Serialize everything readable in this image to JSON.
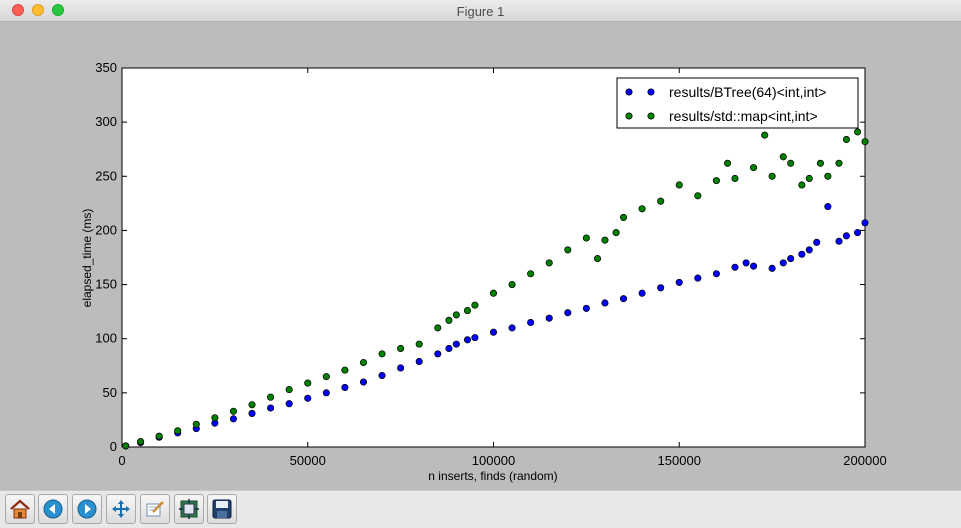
{
  "window": {
    "title": "Figure 1"
  },
  "toolbar": {
    "buttons": [
      {
        "name": "home-button",
        "icon": "home-icon"
      },
      {
        "name": "back-button",
        "icon": "back-arrow-icon"
      },
      {
        "name": "forward-button",
        "icon": "forward-arrow-icon"
      },
      {
        "name": "pan-button",
        "icon": "pan-icon"
      },
      {
        "name": "zoom-button",
        "icon": "zoom-rect-icon"
      },
      {
        "name": "subplots-button",
        "icon": "subplots-icon"
      },
      {
        "name": "save-button",
        "icon": "save-icon"
      }
    ]
  },
  "chart_data": {
    "type": "scatter",
    "title": "",
    "xlabel": "n inserts, finds (random)",
    "ylabel": "elapsed_time (ms)",
    "xlim": [
      0,
      200000
    ],
    "ylim": [
      0,
      350
    ],
    "x_ticks": [
      "0",
      "50000",
      "100000",
      "150000",
      "200000"
    ],
    "y_ticks": [
      "0",
      "50",
      "100",
      "150",
      "200",
      "250",
      "300",
      "350"
    ],
    "legend_position": "top-right",
    "grid": false,
    "series": [
      {
        "name": "results/BTree(64)<int,int>",
        "color": "#0000ff",
        "x": [
          1000,
          5000,
          10000,
          15000,
          20000,
          25000,
          30000,
          35000,
          40000,
          45000,
          50000,
          55000,
          60000,
          65000,
          70000,
          75000,
          80000,
          85000,
          88000,
          90000,
          93000,
          95000,
          100000,
          105000,
          110000,
          115000,
          120000,
          125000,
          130000,
          135000,
          140000,
          145000,
          150000,
          155000,
          160000,
          165000,
          168000,
          170000,
          175000,
          178000,
          180000,
          183000,
          185000,
          187000,
          190000,
          193000,
          195000,
          198000,
          200000
        ],
        "y": [
          1,
          4,
          9,
          13,
          17,
          22,
          26,
          31,
          36,
          40,
          45,
          50,
          55,
          60,
          66,
          73,
          79,
          86,
          91,
          95,
          99,
          101,
          106,
          110,
          115,
          119,
          124,
          128,
          133,
          137,
          142,
          147,
          152,
          156,
          160,
          166,
          170,
          167,
          165,
          170,
          174,
          178,
          182,
          189,
          222,
          190,
          195,
          198,
          207
        ]
      },
      {
        "name": "results/std::map<int,int>",
        "color": "#007f00",
        "x": [
          1000,
          5000,
          10000,
          15000,
          20000,
          25000,
          30000,
          35000,
          40000,
          45000,
          50000,
          55000,
          60000,
          65000,
          70000,
          75000,
          80000,
          85000,
          88000,
          90000,
          93000,
          95000,
          100000,
          105000,
          110000,
          115000,
          120000,
          125000,
          128000,
          130000,
          133000,
          135000,
          140000,
          145000,
          150000,
          155000,
          160000,
          163000,
          165000,
          170000,
          173000,
          175000,
          178000,
          180000,
          183000,
          185000,
          188000,
          190000,
          193000,
          195000,
          198000,
          200000
        ],
        "y": [
          1,
          5,
          10,
          15,
          21,
          27,
          33,
          39,
          46,
          53,
          59,
          65,
          71,
          78,
          86,
          91,
          95,
          110,
          117,
          122,
          126,
          131,
          142,
          150,
          160,
          170,
          182,
          193,
          174,
          191,
          198,
          212,
          220,
          227,
          242,
          232,
          246,
          262,
          248,
          258,
          288,
          250,
          268,
          262,
          242,
          248,
          262,
          250,
          262,
          284,
          291,
          282
        ]
      }
    ]
  }
}
